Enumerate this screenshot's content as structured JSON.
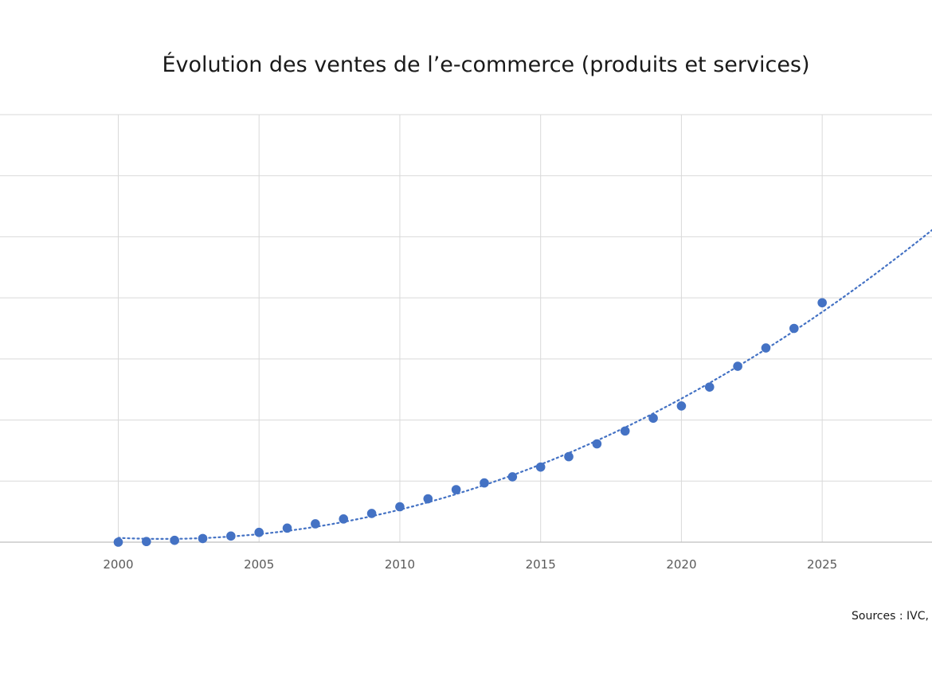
{
  "chart_data": {
    "type": "scatter",
    "title": "Évolution des ventes de l’e-commerce (produits et services)",
    "xlabel": "",
    "ylabel": "",
    "x_ticks": [
      2000,
      2005,
      2010,
      2015,
      2020,
      2025
    ],
    "xlim": [
      1995.8,
      2028.9
    ],
    "ylim": [
      0,
      7
    ],
    "grid": true,
    "trendline": "polynomial (dotted)",
    "series": [
      {
        "color": "#4472c4",
        "x": [
          2000,
          2001,
          2002,
          2003,
          2004,
          2005,
          2006,
          2007,
          2008,
          2009,
          2010,
          2011,
          2012,
          2013,
          2014,
          2015,
          2016,
          2017,
          2018,
          2019,
          2020,
          2021,
          2022,
          2023,
          2024,
          2025
        ],
        "y": [
          0.0,
          0.01,
          0.03,
          0.06,
          0.1,
          0.16,
          0.23,
          0.3,
          0.38,
          0.47,
          0.58,
          0.71,
          0.86,
          0.97,
          1.07,
          1.23,
          1.4,
          1.61,
          1.82,
          2.03,
          2.23,
          2.54,
          2.88,
          3.18,
          3.5,
          3.92
        ]
      }
    ]
  },
  "source": "Sources :  IVC,"
}
